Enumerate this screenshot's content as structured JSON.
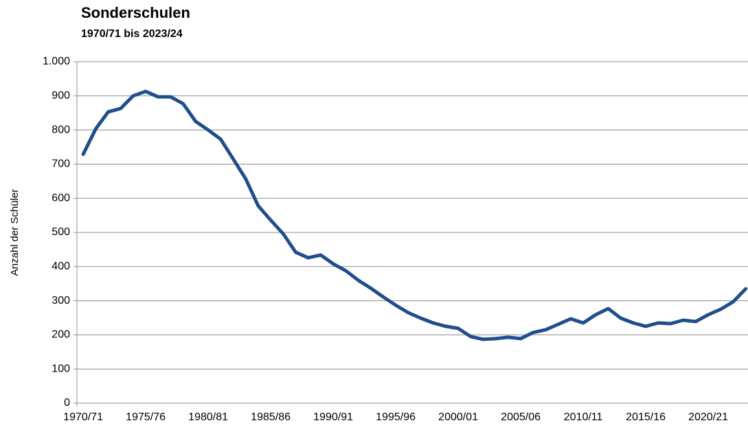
{
  "chart_data": {
    "type": "line",
    "title": "Sonderschulen",
    "subtitle": "1970/71 bis 2023/24",
    "y_label": "Anzahl der Schüler",
    "categories": [
      "1970/71",
      null,
      null,
      null,
      null,
      "1975/76",
      null,
      null,
      null,
      null,
      "1980/81",
      null,
      null,
      null,
      null,
      "1985/86",
      null,
      null,
      null,
      null,
      "1990/91",
      null,
      null,
      null,
      null,
      "1995/96",
      null,
      null,
      null,
      null,
      "2000/01",
      null,
      null,
      null,
      null,
      "2005/06",
      null,
      null,
      null,
      null,
      "2010/11",
      null,
      null,
      null,
      null,
      "2015/16",
      null,
      null,
      null,
      null,
      "2020/21",
      null,
      null,
      null
    ],
    "values": [
      729,
      803,
      853,
      863,
      900,
      913,
      897,
      897,
      877,
      825,
      800,
      773,
      715,
      657,
      578,
      536,
      496,
      442,
      426,
      434,
      408,
      388,
      360,
      337,
      311,
      287,
      265,
      249,
      235,
      225,
      219,
      195,
      187,
      189,
      193,
      189,
      207,
      215,
      231,
      247,
      235,
      259,
      277,
      249,
      235,
      225,
      235,
      233,
      243,
      239,
      259,
      275,
      297,
      335
    ],
    "color": "#1f4e8c",
    "ylim": [
      0,
      1000
    ],
    "yticks": [
      0,
      100,
      200,
      300,
      400,
      500,
      600,
      700,
      800,
      900,
      {
        "value": 1000,
        "label": "1.000"
      }
    ],
    "grid": true
  }
}
